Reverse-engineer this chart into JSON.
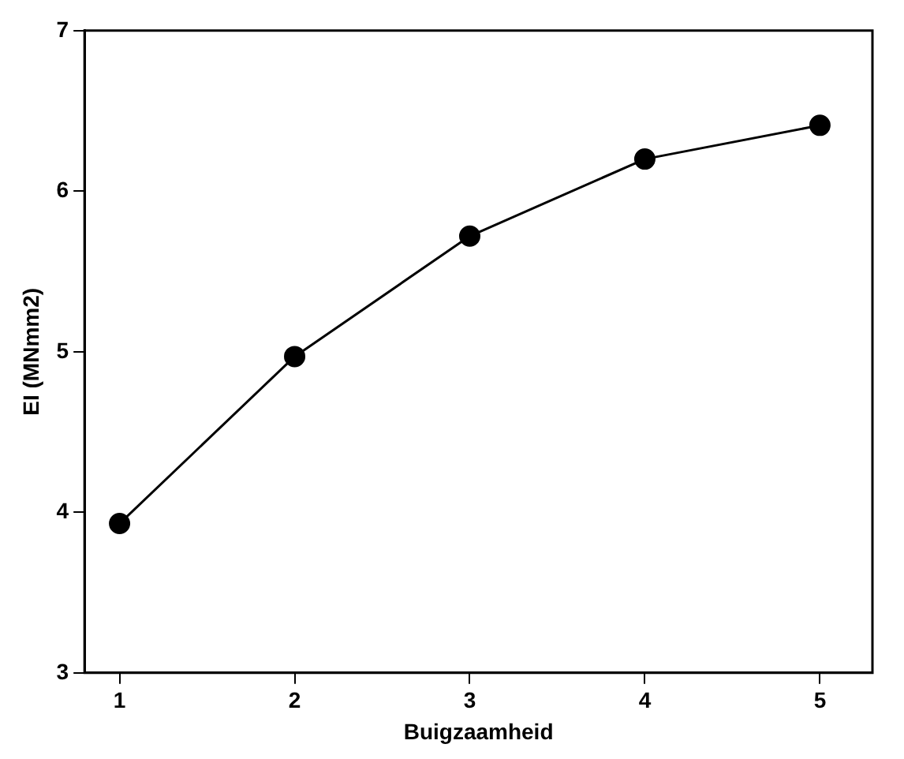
{
  "chart_data": {
    "type": "line",
    "xlabel": "Buigzaamheid",
    "ylabel": "EI (MNmm2)",
    "x": [
      1,
      2,
      3,
      4,
      5
    ],
    "values": [
      3.93,
      4.97,
      5.72,
      6.2,
      6.41
    ],
    "color": "#000000",
    "marker": "circle",
    "line_style": "solid",
    "grid": false,
    "legend": false,
    "xlim": [
      0.8,
      5.3
    ],
    "xticks": [
      1,
      2,
      3,
      4,
      5
    ],
    "ylim": [
      3,
      7
    ],
    "yticks": [
      3,
      4,
      5,
      6,
      7
    ]
  }
}
